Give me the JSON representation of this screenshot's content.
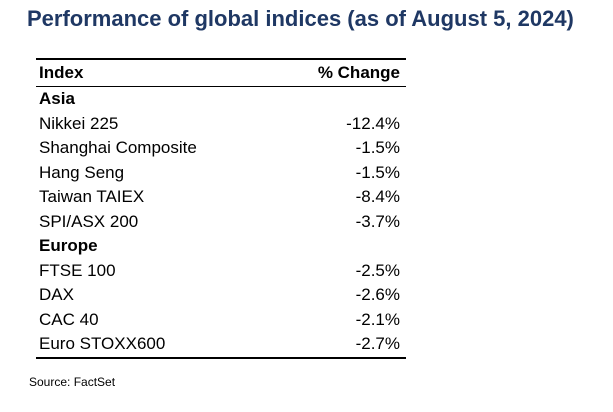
{
  "title": "Performance of global indices (as of August 5, 2024)",
  "table": {
    "columns": [
      "Index",
      "% Change"
    ],
    "groups": [
      {
        "name": "Asia",
        "rows": [
          {
            "index": "Nikkei 225",
            "change": "-12.4%"
          },
          {
            "index": "Shanghai Composite",
            "change": "-1.5%"
          },
          {
            "index": "Hang Seng",
            "change": "-1.5%"
          },
          {
            "index": "Taiwan TAIEX",
            "change": "-8.4%"
          },
          {
            "index": "SPI/ASX 200",
            "change": "-3.7%"
          }
        ]
      },
      {
        "name": "Europe",
        "rows": [
          {
            "index": "FTSE 100",
            "change": "-2.5%"
          },
          {
            "index": "DAX",
            "change": "-2.6%"
          },
          {
            "index": "CAC 40",
            "change": "-2.1%"
          },
          {
            "index": "Euro STOXX600",
            "change": "-2.7%"
          }
        ]
      }
    ]
  },
  "source": "Source: FactSet",
  "colors": {
    "title": "#1f3864",
    "text": "#000000"
  }
}
